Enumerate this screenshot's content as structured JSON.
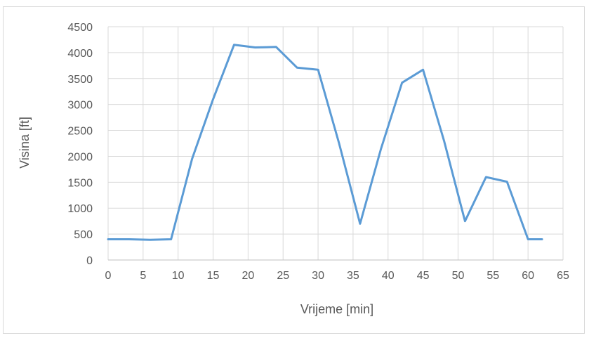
{
  "chart_data": {
    "type": "line",
    "title": "",
    "xlabel": "Vrijeme [min]",
    "ylabel": "Visina [ft]",
    "xlim": [
      0,
      65
    ],
    "ylim": [
      0,
      4500
    ],
    "x_ticks": [
      0,
      5,
      10,
      15,
      20,
      25,
      30,
      35,
      40,
      45,
      50,
      55,
      60,
      65
    ],
    "y_ticks": [
      0,
      500,
      1000,
      1500,
      2000,
      2500,
      3000,
      3500,
      4000,
      4500
    ],
    "grid": true,
    "legend": "none",
    "series": [
      {
        "color": "#5b9bd5",
        "x": [
          0,
          3,
          6,
          9,
          12,
          15,
          18,
          21,
          24,
          27,
          30,
          33,
          36,
          39,
          42,
          45,
          48,
          51,
          54,
          57,
          60,
          62
        ],
        "y": [
          400,
          400,
          390,
          400,
          1950,
          3100,
          4150,
          4100,
          4110,
          3710,
          3670,
          2250,
          700,
          2150,
          3420,
          3670,
          2300,
          750,
          1600,
          1510,
          400,
          400
        ]
      }
    ]
  }
}
